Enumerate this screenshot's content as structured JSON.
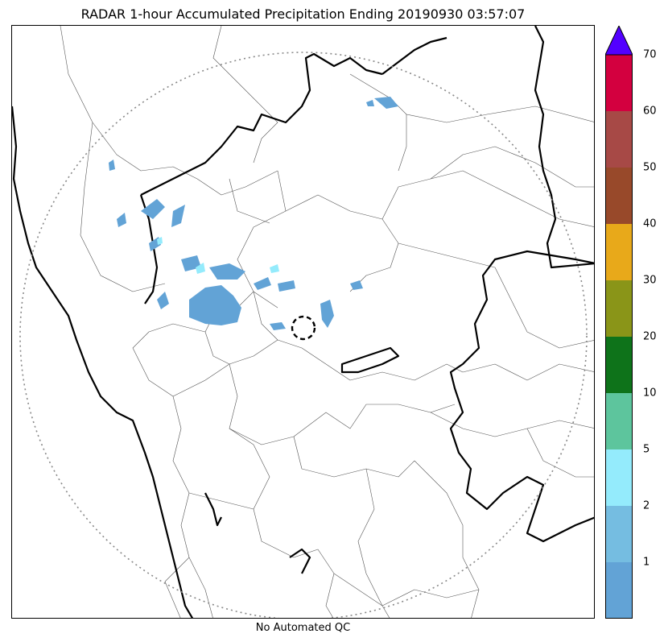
{
  "title": "RADAR 1-hour Accumulated Precipitation Ending 20190930 03:57:07",
  "footer": "No Automated QC",
  "colorbar": {
    "bins": [
      {
        "color": "#62a3d6",
        "label": "1"
      },
      {
        "color": "#75bde1",
        "label": "2"
      },
      {
        "color": "#94ebfc",
        "label": "5"
      },
      {
        "color": "#5dc59d",
        "label": "10"
      },
      {
        "color": "#0e731a",
        "label": "20"
      },
      {
        "color": "#8a9518",
        "label": "30"
      },
      {
        "color": "#e8a91a",
        "label": "40"
      },
      {
        "color": "#98492a",
        "label": "50"
      },
      {
        "color": "#a74946",
        "label": "60"
      },
      {
        "color": "#d3003f",
        "label": "70"
      }
    ],
    "extend_color": "#5300ff"
  }
}
